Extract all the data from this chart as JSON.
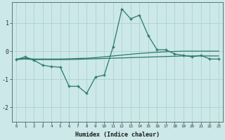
{
  "x": [
    0,
    1,
    2,
    3,
    4,
    5,
    6,
    7,
    8,
    9,
    10,
    11,
    12,
    13,
    14,
    15,
    16,
    17,
    18,
    19,
    20,
    21,
    22,
    23
  ],
  "line_zigzag": [
    -0.3,
    -0.2,
    -0.32,
    -0.5,
    -0.55,
    -0.57,
    -1.25,
    -1.25,
    -1.5,
    -0.92,
    -0.85,
    0.15,
    1.5,
    1.15,
    1.28,
    0.55,
    0.05,
    0.05,
    -0.1,
    -0.15,
    -0.2,
    -0.15,
    -0.28,
    -0.28
  ],
  "line_flat1": [
    -0.28,
    -0.26,
    -0.28,
    -0.28,
    -0.28,
    -0.28,
    -0.27,
    -0.26,
    -0.25,
    -0.23,
    -0.2,
    -0.17,
    -0.14,
    -0.11,
    -0.08,
    -0.06,
    -0.04,
    -0.02,
    -0.01,
    0.0,
    0.0,
    0.0,
    0.0,
    0.0
  ],
  "line_flat2": [
    -0.3,
    -0.28,
    -0.3,
    -0.3,
    -0.3,
    -0.3,
    -0.3,
    -0.29,
    -0.28,
    -0.27,
    -0.26,
    -0.25,
    -0.24,
    -0.23,
    -0.22,
    -0.21,
    -0.2,
    -0.19,
    -0.18,
    -0.17,
    -0.17,
    -0.17,
    -0.17,
    -0.17
  ],
  "color": "#2a7a6a",
  "bg_color": "#cce8e8",
  "grid_color": "#aacece",
  "xlabel": "Humidex (Indice chaleur)",
  "xlim": [
    -0.5,
    23.5
  ],
  "ylim": [
    -2.5,
    1.75
  ],
  "yticks": [
    -2,
    -1,
    0,
    1
  ],
  "xticks": [
    0,
    1,
    2,
    3,
    4,
    5,
    6,
    7,
    8,
    9,
    10,
    11,
    12,
    13,
    14,
    15,
    16,
    17,
    18,
    19,
    20,
    21,
    22,
    23
  ]
}
